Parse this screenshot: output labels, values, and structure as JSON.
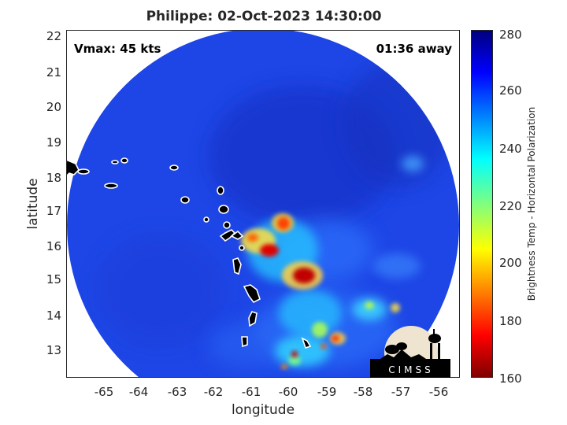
{
  "title": "Philippe: 02-Oct-2023 14:30:00",
  "overlay": {
    "vmax_text": "Vmax: 45 kts",
    "time_text": "01:36 away"
  },
  "axes": {
    "xlabel": "longitude",
    "ylabel": "latitude",
    "xticks": [
      "-65",
      "-64",
      "-63",
      "-62",
      "-61",
      "-60",
      "-59",
      "-58",
      "-57",
      "-56"
    ],
    "yticks": [
      "22",
      "21",
      "20",
      "19",
      "18",
      "17",
      "16",
      "15",
      "14",
      "13"
    ],
    "xlim": [
      -66.05,
      -55.35
    ],
    "ylim": [
      12.25,
      22.2
    ]
  },
  "colorbar": {
    "label": "Brightness Temp - Horizontal Polarization",
    "ticks": [
      "280",
      "260",
      "240",
      "220",
      "200",
      "180",
      "160"
    ],
    "range": [
      160,
      280
    ],
    "colormap": "jet"
  },
  "colors": {
    "background_field": "#1e46e6",
    "coast_outline": "#ffffff",
    "coast_fill": "#000000"
  },
  "logo": {
    "text": "CIMSS",
    "icon": "cimss-logo-icon"
  }
}
